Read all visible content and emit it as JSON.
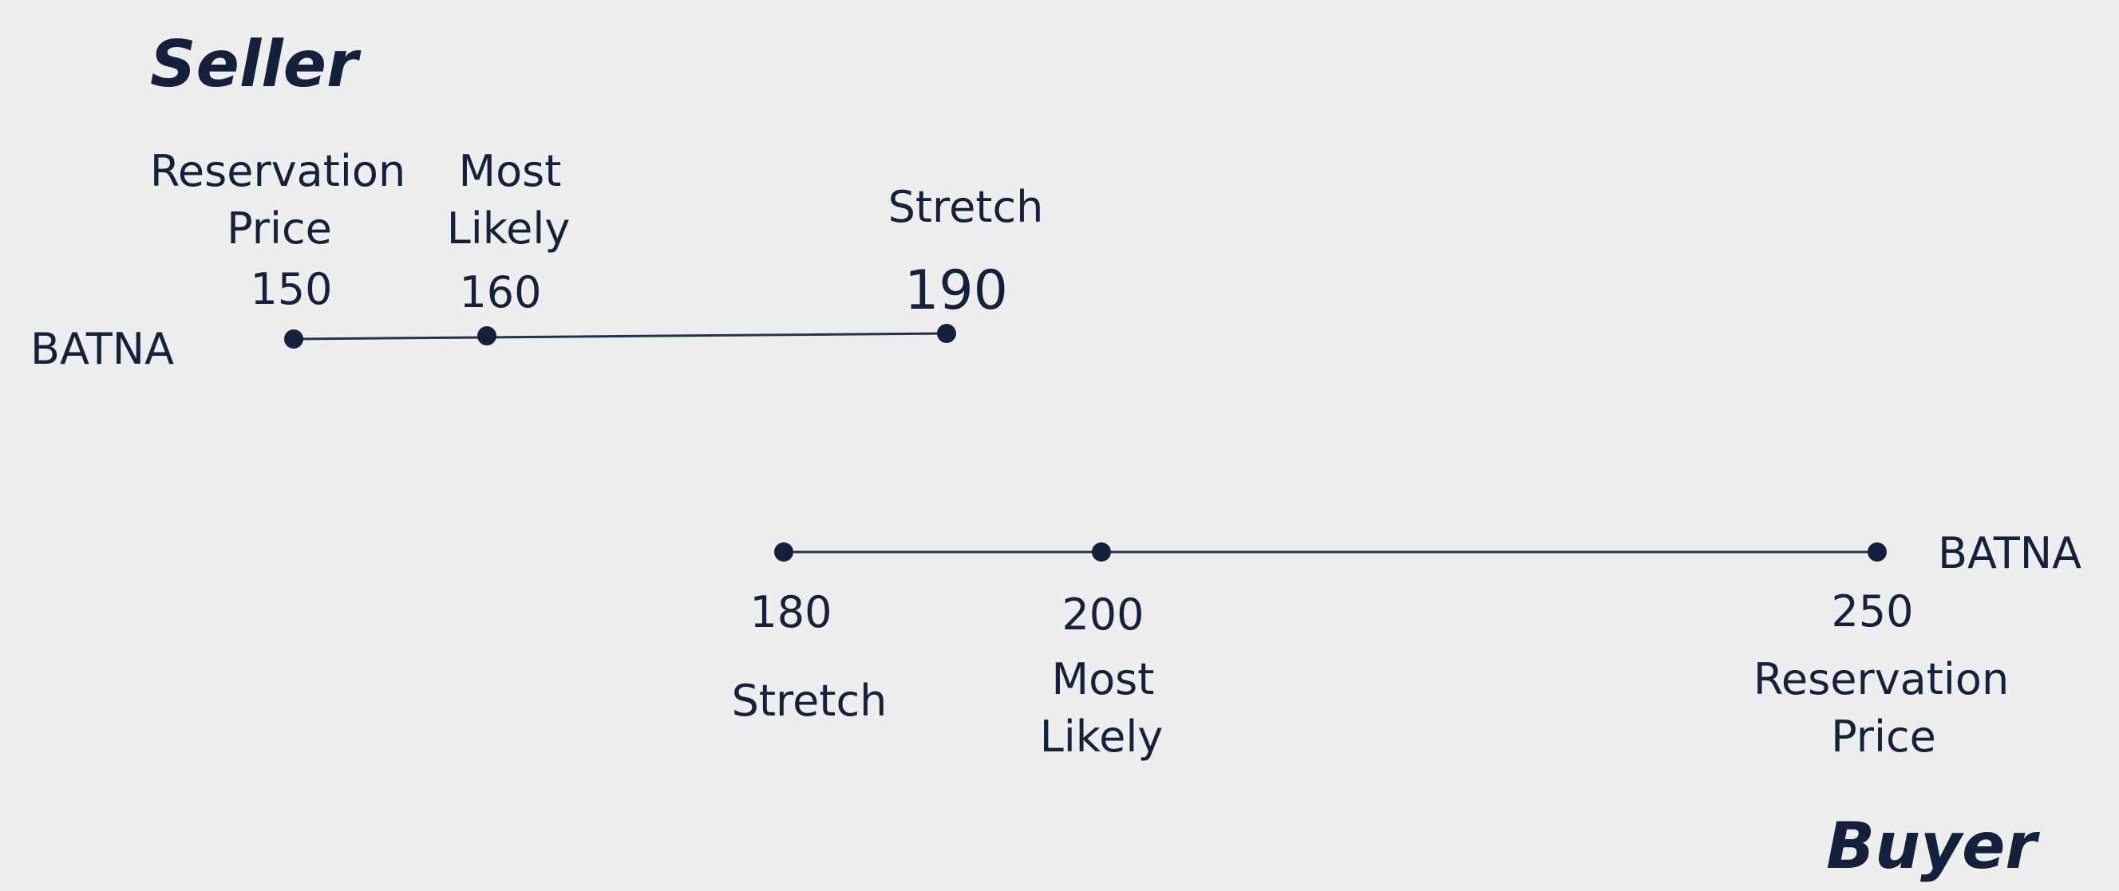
{
  "seller": {
    "title": "Seller",
    "batna_label": "BATNA",
    "points": [
      {
        "name_lines": [
          "Reservation",
          "Price"
        ],
        "value": "150"
      },
      {
        "name_lines": [
          "Most",
          "Likely"
        ],
        "value": "160"
      },
      {
        "name_lines": [
          "Stretch"
        ],
        "value": "190"
      }
    ]
  },
  "buyer": {
    "title": "Buyer",
    "batna_label": "BATNA",
    "points": [
      {
        "name_lines": [
          "Stretch"
        ],
        "value": "180"
      },
      {
        "name_lines": [
          "Most",
          "Likely"
        ],
        "value": "200"
      },
      {
        "name_lines": [
          "Reservation",
          "Price"
        ],
        "value": "250"
      }
    ]
  },
  "colors": {
    "background": "#eeeeef",
    "ink": "#14213d"
  }
}
